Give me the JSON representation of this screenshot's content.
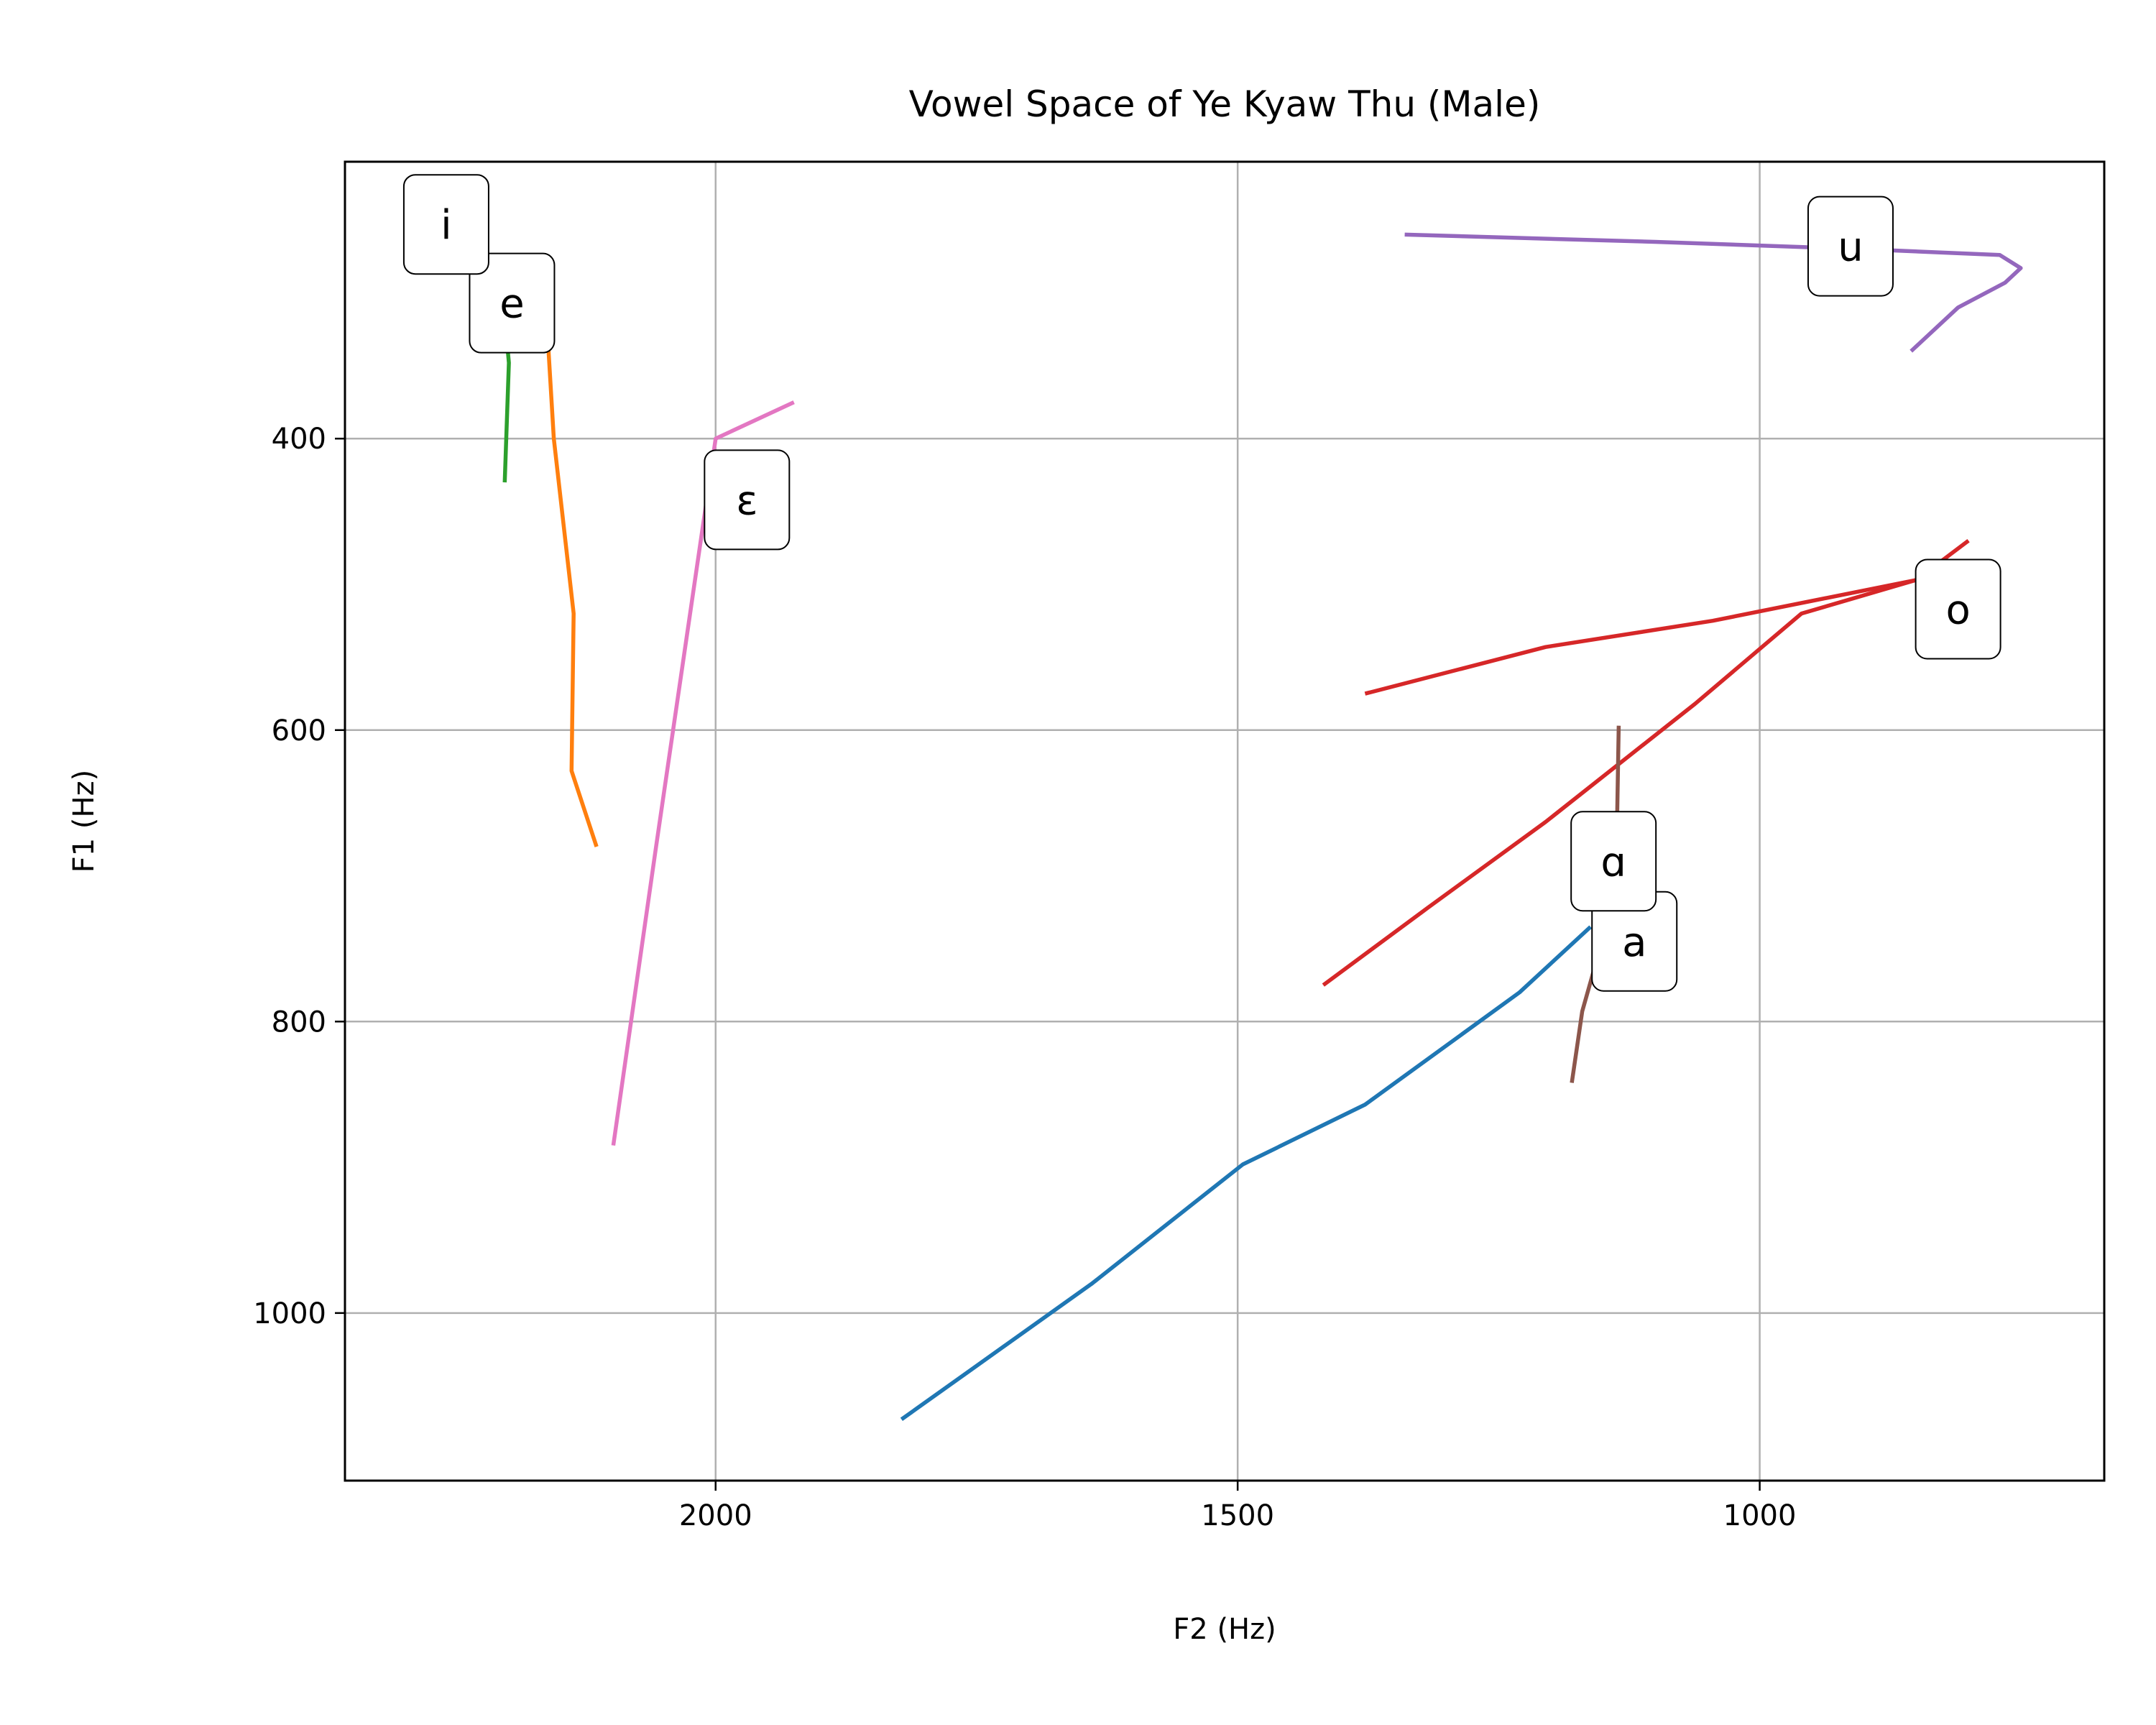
{
  "chart_data": {
    "type": "line",
    "title": "Vowel Space of Ye Kyaw Thu (Male)",
    "xlabel": "F2 (Hz)",
    "ylabel": "F1 (Hz)",
    "x_inverted": true,
    "y_inverted": true,
    "xlim": [
      2355,
      670
    ],
    "ylim": [
      210,
      1115
    ],
    "grid": true,
    "x_ticks": [
      2000,
      1500,
      1000
    ],
    "y_ticks": [
      400,
      600,
      800,
      1000
    ],
    "series": [
      {
        "name": "a",
        "color": "#1f77b4",
        "points": [
          [
            1822,
            1073
          ],
          [
            1640,
            980
          ],
          [
            1495,
            898
          ],
          [
            1378,
            857
          ],
          [
            1230,
            780
          ],
          [
            1162,
            735
          ]
        ],
        "label_at": [
          1120,
          745
        ]
      },
      {
        "name": "e",
        "color": "#ff7f0e",
        "points": [
          [
            2235,
            280
          ],
          [
            2206,
            300
          ],
          [
            2160,
            340
          ],
          [
            2155,
            400
          ],
          [
            2136,
            520
          ],
          [
            2138,
            628
          ],
          [
            2114,
            680
          ]
        ],
        "label_at": [
          2195,
          307
        ]
      },
      {
        "name": "i",
        "color": "#2ca02c",
        "points": [
          [
            2262,
            263
          ],
          [
            2236,
            268
          ],
          [
            2203,
            308
          ],
          [
            2198,
            348
          ],
          [
            2202,
            430
          ]
        ],
        "label_at": [
          2258,
          253
        ]
      },
      {
        "name": "o",
        "color": "#d62728",
        "points": [
          [
            1418,
            775
          ],
          [
            1318,
            722
          ],
          [
            1205,
            663
          ],
          [
            1062,
            582
          ],
          [
            960,
            520
          ],
          [
            850,
            497
          ],
          [
            800,
            470
          ]
        ],
        "label_at": [
          810,
          517
        ],
        "segments": [
          [
            [
              1378,
              575
            ],
            [
              1205,
              543
            ],
            [
              1045,
              525
            ],
            [
              850,
              497
            ]
          ]
        ]
      },
      {
        "name": "u",
        "color": "#9467bd",
        "points": [
          [
            1340,
            260
          ],
          [
            1100,
            265
          ],
          [
            900,
            270
          ],
          [
            770,
            274
          ],
          [
            750,
            283
          ],
          [
            765,
            293
          ],
          [
            810,
            310
          ],
          [
            855,
            340
          ]
        ],
        "label_at": [
          913,
          268
        ]
      },
      {
        "name": "ɑ",
        "color": "#8c564b",
        "points": [
          [
            1135,
            597
          ],
          [
            1137,
            680
          ],
          [
            1155,
            755
          ],
          [
            1170,
            793
          ],
          [
            1180,
            842
          ]
        ],
        "label_at": [
          1140,
          690
        ]
      },
      {
        "name": "ɛ",
        "color": "#e377c2",
        "points": [
          [
            2098,
            885
          ],
          [
            2057,
            680
          ],
          [
            2000,
            400
          ],
          [
            1925,
            375
          ]
        ],
        "label_at": [
          1970,
          442
        ]
      }
    ]
  }
}
